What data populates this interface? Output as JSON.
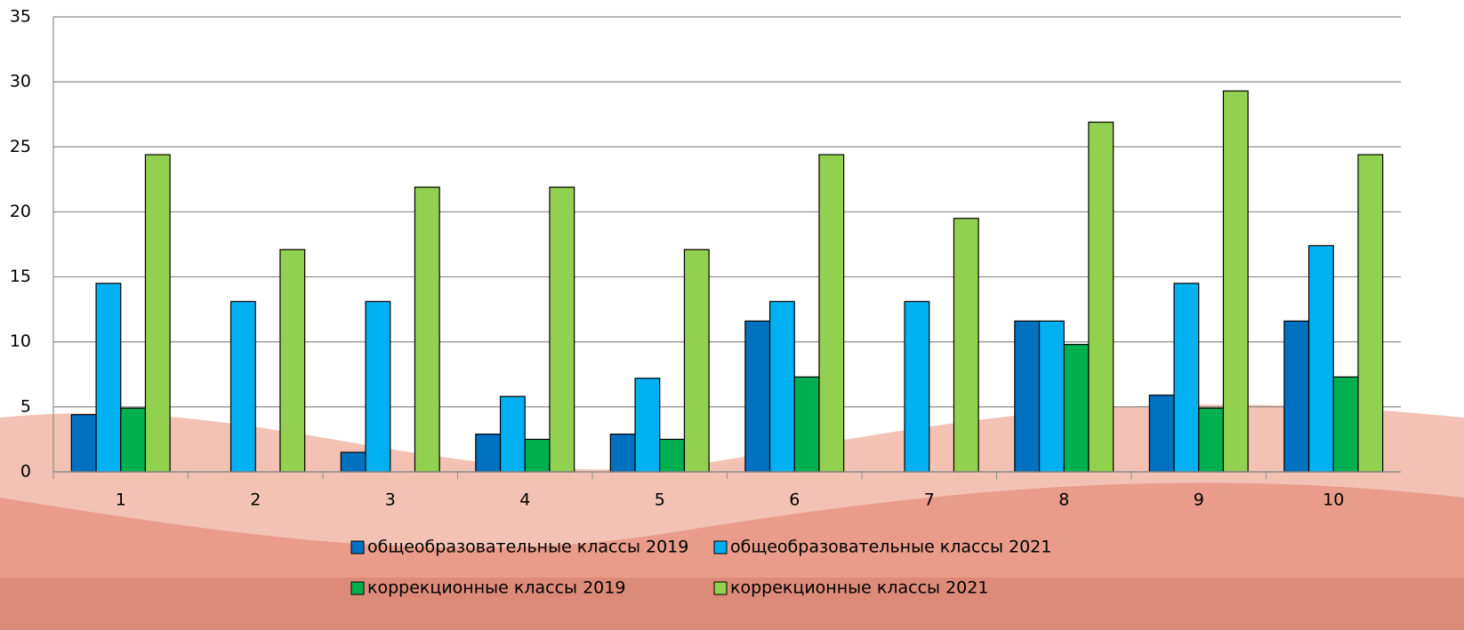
{
  "chart_data": {
    "type": "bar",
    "categories": [
      "1",
      "2",
      "3",
      "4",
      "5",
      "6",
      "7",
      "8",
      "9",
      "10"
    ],
    "series": [
      {
        "name": "общеобразовательные классы 2019",
        "color": "#0070c0",
        "values": [
          4.4,
          0,
          1.5,
          2.9,
          2.9,
          11.6,
          0,
          11.6,
          5.9,
          11.6
        ]
      },
      {
        "name": "общеобразовательные классы 2021",
        "color": "#00b0f0",
        "values": [
          14.5,
          13.1,
          13.1,
          5.8,
          7.2,
          13.1,
          13.1,
          11.6,
          14.5,
          17.4
        ]
      },
      {
        "name": "коррекционные классы 2019",
        "color": "#00b050",
        "values": [
          4.9,
          0,
          0,
          2.5,
          2.5,
          7.3,
          0,
          9.8,
          4.9,
          7.3
        ]
      },
      {
        "name": "коррекционные классы 2021",
        "color": "#92d050",
        "values": [
          24.4,
          17.1,
          21.9,
          21.9,
          17.1,
          24.4,
          19.5,
          26.9,
          29.3,
          24.4
        ]
      }
    ],
    "ylim": [
      0,
      35
    ],
    "yticks": [
      0,
      5,
      10,
      15,
      20,
      25,
      30,
      35
    ],
    "grid": true,
    "legend": "bottom"
  }
}
